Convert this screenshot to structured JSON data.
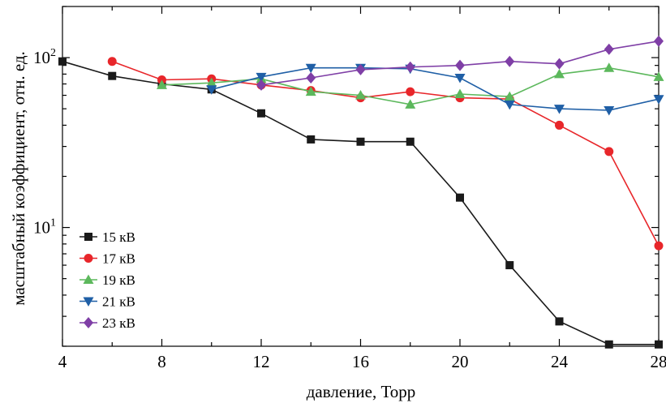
{
  "chart_data": {
    "type": "line",
    "xlabel": "давление, Торр",
    "ylabel": "масштабный коэффициент, отн. ед.",
    "xlim": [
      4,
      28
    ],
    "ylim": [
      2,
      200
    ],
    "yscale": "log",
    "x_ticks": [
      4,
      8,
      12,
      16,
      20,
      24,
      28
    ],
    "x_tick_labels": [
      "4",
      "8",
      "12",
      "16",
      "20",
      "24",
      "28"
    ],
    "y_ticks": [
      {
        "value": 10,
        "base": "10",
        "exp": "1"
      },
      {
        "value": 100,
        "base": "10",
        "exp": "2"
      }
    ],
    "grid": false,
    "legend_position": "bottom-left",
    "series": [
      {
        "name": "15 кВ",
        "color": "#1a1a1a",
        "marker": "square",
        "x": [
          4,
          6,
          8,
          10,
          12,
          14,
          16,
          18,
          20,
          22,
          24,
          26,
          28
        ],
        "y": [
          95,
          78,
          70,
          65,
          47,
          33,
          32,
          32,
          15,
          6,
          2.8,
          2.05,
          2.05
        ]
      },
      {
        "name": "17 кВ",
        "color": "#e8262a",
        "marker": "circle",
        "x": [
          6,
          8,
          10,
          12,
          14,
          16,
          18,
          20,
          22,
          24,
          26,
          28
        ],
        "y": [
          95,
          74,
          75,
          69,
          64,
          58,
          63,
          58,
          57,
          40,
          28,
          7.8
        ]
      },
      {
        "name": "19 кВ",
        "color": "#5cb85c",
        "marker": "triangle-up",
        "x": [
          8,
          10,
          12,
          14,
          16,
          18,
          20,
          22,
          24,
          26,
          28
        ],
        "y": [
          69,
          71,
          75,
          63,
          60,
          53,
          61,
          59,
          80,
          87,
          77
        ]
      },
      {
        "name": "21 кВ",
        "color": "#1f5fa6",
        "marker": "triangle-down",
        "x": [
          10,
          12,
          14,
          16,
          18,
          20,
          22,
          24,
          26,
          28
        ],
        "y": [
          65,
          77,
          87,
          87,
          86,
          76,
          53,
          50,
          49,
          57
        ]
      },
      {
        "name": "23 кВ",
        "color": "#7f3fa6",
        "marker": "diamond",
        "x": [
          12,
          14,
          16,
          18,
          20,
          22,
          24,
          26,
          28
        ],
        "y": [
          69,
          76,
          85,
          88,
          90,
          95,
          92,
          112,
          125
        ]
      }
    ]
  }
}
